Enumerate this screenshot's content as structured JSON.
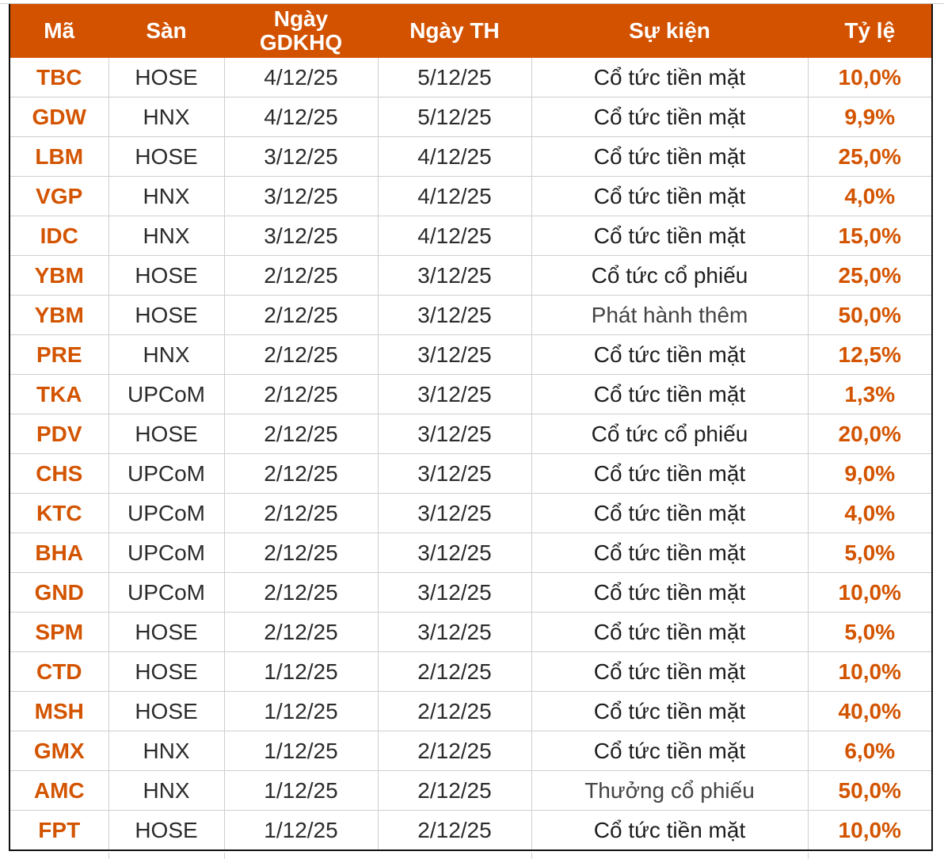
{
  "colors": {
    "header_bg": "#d35200",
    "accent_text": "#d35400"
  },
  "headers": [
    "Mã",
    "Sàn",
    "Ngày\nGDKHQ",
    "Ngày TH",
    "Sự kiện",
    "Tỷ lệ"
  ],
  "rows": [
    [
      "TBC",
      "HOSE",
      "4/12/25",
      "5/12/25",
      "Cổ tức tiền mặt",
      "10,0%"
    ],
    [
      "GDW",
      "HNX",
      "4/12/25",
      "5/12/25",
      "Cổ tức tiền mặt",
      "9,9%"
    ],
    [
      "LBM",
      "HOSE",
      "3/12/25",
      "4/12/25",
      "Cổ tức tiền mặt",
      "25,0%"
    ],
    [
      "VGP",
      "HNX",
      "3/12/25",
      "4/12/25",
      "Cổ tức tiền mặt",
      "4,0%"
    ],
    [
      "IDC",
      "HNX",
      "3/12/25",
      "4/12/25",
      "Cổ tức tiền mặt",
      "15,0%"
    ],
    [
      "YBM",
      "HOSE",
      "2/12/25",
      "3/12/25",
      "Cổ tức cổ phiếu",
      "25,0%"
    ],
    [
      "YBM",
      "HOSE",
      "2/12/25",
      "3/12/25",
      "Phát hành thêm",
      "50,0%"
    ],
    [
      "PRE",
      "HNX",
      "2/12/25",
      "3/12/25",
      "Cổ tức tiền mặt",
      "12,5%"
    ],
    [
      "TKA",
      "UPCoM",
      "2/12/25",
      "3/12/25",
      "Cổ tức tiền mặt",
      "1,3%"
    ],
    [
      "PDV",
      "HOSE",
      "2/12/25",
      "3/12/25",
      "Cổ tức cổ phiếu",
      "20,0%"
    ],
    [
      "CHS",
      "UPCoM",
      "2/12/25",
      "3/12/25",
      "Cổ tức tiền mặt",
      "9,0%"
    ],
    [
      "KTC",
      "UPCoM",
      "2/12/25",
      "3/12/25",
      "Cổ tức tiền mặt",
      "4,0%"
    ],
    [
      "BHA",
      "UPCoM",
      "2/12/25",
      "3/12/25",
      "Cổ tức tiền mặt",
      "5,0%"
    ],
    [
      "GND",
      "UPCoM",
      "2/12/25",
      "3/12/25",
      "Cổ tức tiền mặt",
      "10,0%"
    ],
    [
      "SPM",
      "HOSE",
      "2/12/25",
      "3/12/25",
      "Cổ tức tiền mặt",
      "5,0%"
    ],
    [
      "CTD",
      "HOSE",
      "1/12/25",
      "2/12/25",
      "Cổ tức tiền mặt",
      "10,0%"
    ],
    [
      "MSH",
      "HOSE",
      "1/12/25",
      "2/12/25",
      "Cổ tức tiền mặt",
      "40,0%"
    ],
    [
      "GMX",
      "HNX",
      "1/12/25",
      "2/12/25",
      "Cổ tức tiền mặt",
      "6,0%"
    ],
    [
      "AMC",
      "HNX",
      "1/12/25",
      "2/12/25",
      "Thưởng cổ phiếu",
      "50,0%"
    ],
    [
      "FPT",
      "HOSE",
      "1/12/25",
      "2/12/25",
      "Cổ tức tiền mặt",
      "10,0%"
    ]
  ]
}
